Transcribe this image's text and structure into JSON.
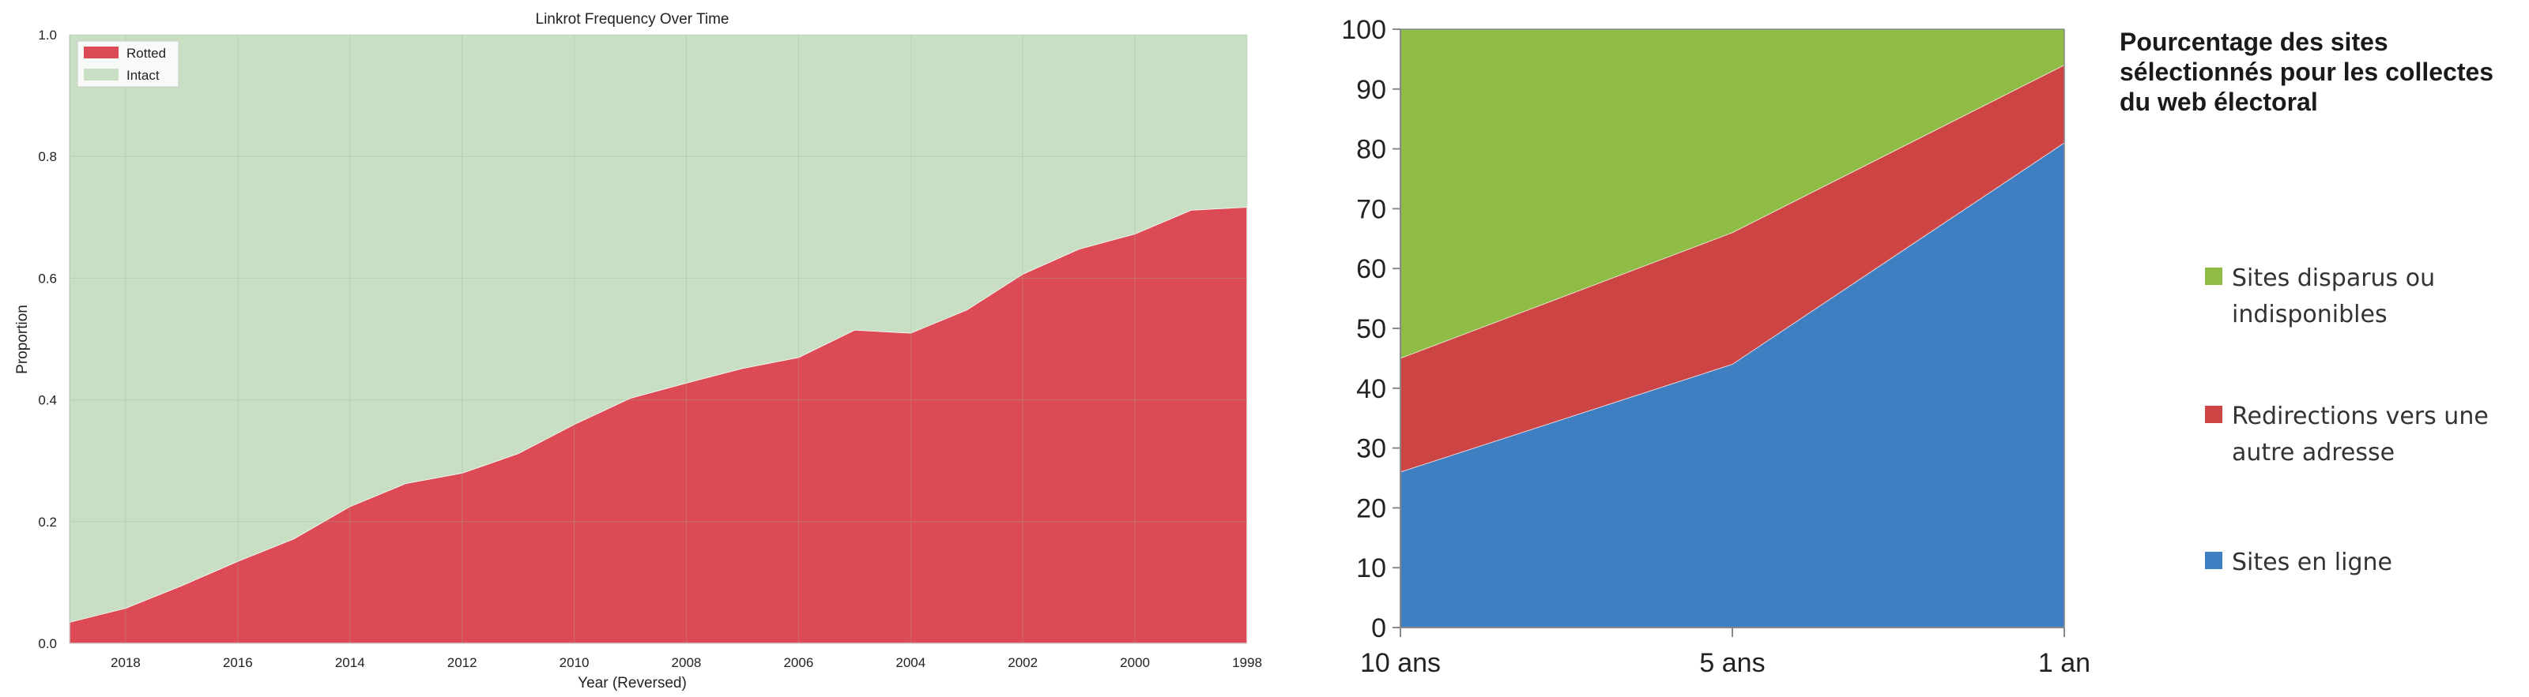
{
  "chart_data": [
    {
      "type": "area",
      "stacked": true,
      "title": "Linkrot Frequency Over Time",
      "xlabel": "Year (Reversed)",
      "ylabel": "Proportion",
      "x_reversed": true,
      "xlim": [
        2019,
        1998
      ],
      "ylim": [
        0,
        1
      ],
      "grid": true,
      "legend_position": "top-left",
      "xticks": [
        "2018",
        "2016",
        "2014",
        "2012",
        "2010",
        "2008",
        "2006",
        "2004",
        "2002",
        "2000",
        "1998"
      ],
      "yticks": [
        "0.0",
        "0.2",
        "0.4",
        "0.6",
        "0.8",
        "1.0"
      ],
      "x": [
        2019,
        2018,
        2017,
        2016,
        2015,
        2014,
        2013,
        2012,
        2011,
        2010,
        2009,
        2008,
        2007,
        2006,
        2005,
        2004,
        2003,
        2002,
        2001,
        2000,
        1999,
        1998
      ],
      "series": [
        {
          "name": "Rotted",
          "color": "#db4a55",
          "values": [
            0.035,
            0.058,
            0.095,
            0.135,
            0.172,
            0.225,
            0.263,
            0.28,
            0.312,
            0.36,
            0.403,
            0.428,
            0.452,
            0.47,
            0.515,
            0.51,
            0.548,
            0.607,
            0.648,
            0.673,
            0.712,
            0.717
          ]
        },
        {
          "name": "Intact",
          "color": "#c8dfc3",
          "values": [
            0.965,
            0.942,
            0.905,
            0.865,
            0.828,
            0.775,
            0.737,
            0.72,
            0.688,
            0.64,
            0.597,
            0.572,
            0.548,
            0.53,
            0.485,
            0.49,
            0.452,
            0.393,
            0.352,
            0.327,
            0.288,
            0.283
          ]
        }
      ]
    },
    {
      "type": "area",
      "stacked": true,
      "title": "Pourcentage des sites sélectionnés pour les collectes du web électoral",
      "categories": [
        "10 ans",
        "5 ans",
        "1 an"
      ],
      "ylim": [
        0,
        100
      ],
      "yticks": [
        "0",
        "10",
        "20",
        "30",
        "40",
        "50",
        "60",
        "70",
        "80",
        "90",
        "100"
      ],
      "grid": false,
      "legend_position": "right",
      "series": [
        {
          "name": "Sites en ligne",
          "color": "#3f7fc1",
          "values": [
            26,
            44,
            81
          ]
        },
        {
          "name": "Redirections vers une autre adresse",
          "color": "#cc4444",
          "values": [
            19,
            22,
            13
          ]
        },
        {
          "name": "Sites disparus ou indisponibles",
          "color": "#8fbc44",
          "values": [
            55,
            34,
            6
          ]
        }
      ],
      "legend_lines": [
        {
          "series": 2,
          "lines": [
            "Sites disparus ou",
            "indisponibles"
          ]
        },
        {
          "series": 1,
          "lines": [
            "Redirections vers une",
            "autre adresse"
          ]
        },
        {
          "series": 0,
          "lines": [
            "Sites en ligne"
          ]
        }
      ]
    }
  ]
}
